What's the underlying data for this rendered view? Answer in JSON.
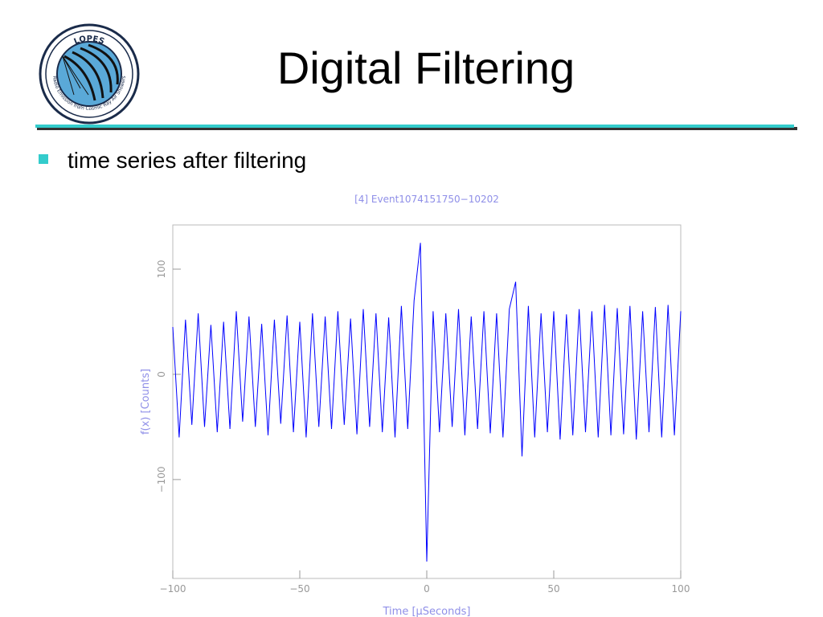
{
  "slide": {
    "title": "Digital Filtering",
    "bullet": "time series after filtering",
    "logo": {
      "name": "LOPES",
      "motto": "Radio Emission from Cosmic Ray Air Showers"
    }
  },
  "chart_data": {
    "type": "line",
    "title": "[4] Event1074151750−10202",
    "x_label": "Time [μSeconds]",
    "y_label": "f(x) [Counts]",
    "color": "#0000ff",
    "xlim": [
      -100,
      100
    ],
    "ylim": [
      -194,
      142
    ],
    "xticks": [
      {
        "value": -100,
        "label": "−100"
      },
      {
        "value": -50,
        "label": "−50"
      },
      0,
      50,
      100
    ],
    "yticks": [
      {
        "value": -100,
        "label": "−100"
      },
      0,
      100
    ],
    "x": [
      -100,
      -97.5,
      -95,
      -92.5,
      -90,
      -87.5,
      -85,
      -82.5,
      -80,
      -77.5,
      -75,
      -72.5,
      -70,
      -67.5,
      -65,
      -62.5,
      -60,
      -57.5,
      -55,
      -52.5,
      -50,
      -47.5,
      -45,
      -42.5,
      -40,
      -37.5,
      -35,
      -32.5,
      -30,
      -27.5,
      -25,
      -22.5,
      -20,
      -17.5,
      -15,
      -12.5,
      -10,
      -7.5,
      -5,
      -2.5,
      0,
      2.5,
      5,
      7.5,
      10,
      12.5,
      15,
      17.5,
      20,
      22.5,
      25,
      27.5,
      30,
      32.5,
      35,
      37.5,
      40,
      42.5,
      45,
      47.5,
      50,
      52.5,
      55,
      57.5,
      60,
      62.5,
      65,
      67.5,
      70,
      72.5,
      75,
      77.5,
      80,
      82.5,
      85,
      87.5,
      90,
      92.5,
      95,
      97.5,
      100
    ],
    "values": [
      45,
      -60,
      52,
      -48,
      58,
      -50,
      47,
      -55,
      50,
      -52,
      60,
      -45,
      55,
      -50,
      48,
      -58,
      52,
      -47,
      56,
      -55,
      50,
      -60,
      58,
      -50,
      55,
      -52,
      60,
      -48,
      53,
      -57,
      62,
      -50,
      58,
      -55,
      54,
      -60,
      65,
      -52,
      70,
      125,
      -178,
      60,
      -55,
      58,
      -50,
      62,
      -58,
      55,
      -52,
      60,
      -56,
      58,
      -60,
      62,
      88,
      -78,
      65,
      -60,
      58,
      -55,
      60,
      -62,
      57,
      -58,
      62,
      -55,
      60,
      -60,
      66,
      -58,
      63,
      -57,
      65,
      -62,
      60,
      -55,
      64,
      -60,
      66,
      -58,
      60
    ]
  }
}
